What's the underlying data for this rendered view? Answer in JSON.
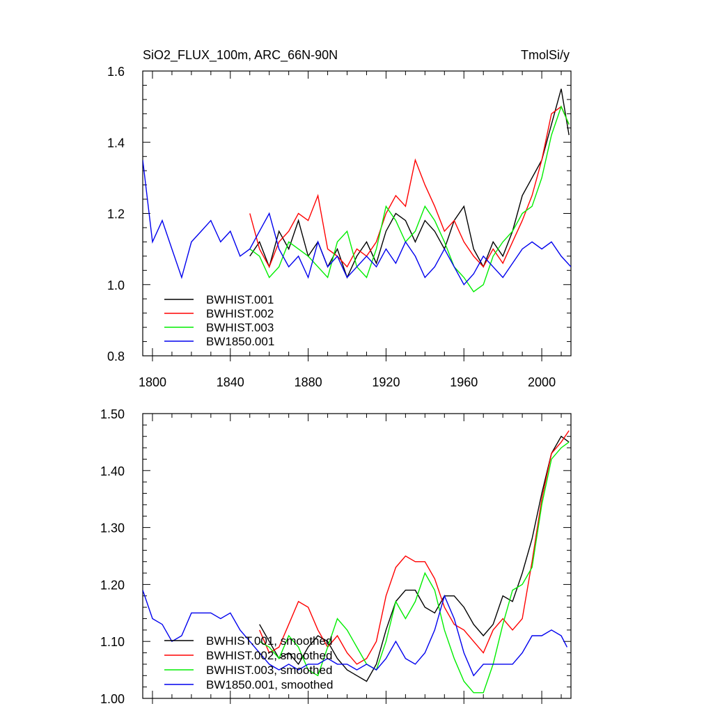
{
  "chart_data": [
    {
      "type": "line",
      "title_left": "SiO2_FLUX_100m, ARC_66N-90N",
      "title_right": "TmolSi/y",
      "xlim": [
        1795,
        2015
      ],
      "ylim": [
        0.8,
        1.6
      ],
      "xticks": [
        1800,
        1840,
        1880,
        1920,
        1960,
        2000
      ],
      "yticks": [
        0.8,
        1.0,
        1.2,
        1.4,
        1.6
      ],
      "yticks_labels": [
        "0.8",
        "1.0",
        "1.2",
        "1.4",
        "1.6"
      ],
      "legend_placement": "lower-left",
      "series": [
        {
          "name": "BWHIST.001",
          "color": "#000000",
          "x": [
            1850,
            1855,
            1860,
            1865,
            1870,
            1875,
            1880,
            1885,
            1890,
            1895,
            1900,
            1905,
            1910,
            1915,
            1920,
            1925,
            1930,
            1935,
            1940,
            1945,
            1950,
            1955,
            1960,
            1965,
            1970,
            1975,
            1980,
            1985,
            1990,
            1995,
            2000,
            2005,
            2010,
            2014
          ],
          "y": [
            1.08,
            1.12,
            1.05,
            1.15,
            1.1,
            1.18,
            1.08,
            1.12,
            1.05,
            1.1,
            1.02,
            1.08,
            1.12,
            1.06,
            1.15,
            1.2,
            1.18,
            1.12,
            1.18,
            1.15,
            1.1,
            1.18,
            1.22,
            1.1,
            1.05,
            1.12,
            1.08,
            1.15,
            1.25,
            1.3,
            1.35,
            1.45,
            1.55,
            1.42
          ]
        },
        {
          "name": "BWHIST.002",
          "color": "#ff0000",
          "x": [
            1850,
            1855,
            1860,
            1865,
            1870,
            1875,
            1880,
            1885,
            1890,
            1895,
            1900,
            1905,
            1910,
            1915,
            1920,
            1925,
            1930,
            1935,
            1940,
            1945,
            1950,
            1955,
            1960,
            1965,
            1970,
            1975,
            1980,
            1985,
            1990,
            1995,
            2000,
            2005,
            2010,
            2014
          ],
          "y": [
            1.2,
            1.1,
            1.05,
            1.12,
            1.15,
            1.2,
            1.18,
            1.25,
            1.1,
            1.08,
            1.05,
            1.1,
            1.08,
            1.12,
            1.2,
            1.25,
            1.22,
            1.35,
            1.28,
            1.22,
            1.15,
            1.18,
            1.12,
            1.08,
            1.05,
            1.1,
            1.06,
            1.12,
            1.18,
            1.25,
            1.35,
            1.48,
            1.5,
            1.45
          ]
        },
        {
          "name": "BWHIST.003",
          "color": "#00ee00",
          "x": [
            1850,
            1855,
            1860,
            1865,
            1870,
            1875,
            1880,
            1885,
            1890,
            1895,
            1900,
            1905,
            1910,
            1915,
            1920,
            1925,
            1930,
            1935,
            1940,
            1945,
            1950,
            1955,
            1960,
            1965,
            1970,
            1975,
            1980,
            1985,
            1990,
            1995,
            2000,
            2005,
            2010,
            2014
          ],
          "y": [
            1.1,
            1.08,
            1.02,
            1.05,
            1.12,
            1.1,
            1.08,
            1.05,
            1.02,
            1.12,
            1.15,
            1.05,
            1.02,
            1.1,
            1.22,
            1.18,
            1.12,
            1.15,
            1.22,
            1.18,
            1.12,
            1.05,
            1.02,
            0.98,
            1.0,
            1.08,
            1.12,
            1.15,
            1.2,
            1.22,
            1.3,
            1.42,
            1.5,
            1.45
          ]
        },
        {
          "name": "BW1850.001",
          "color": "#0000ee",
          "x": [
            1795,
            1800,
            1805,
            1810,
            1815,
            1820,
            1825,
            1830,
            1835,
            1840,
            1845,
            1850,
            1855,
            1860,
            1865,
            1870,
            1875,
            1880,
            1885,
            1890,
            1895,
            1900,
            1905,
            1910,
            1915,
            1920,
            1925,
            1930,
            1935,
            1940,
            1945,
            1950,
            1955,
            1960,
            1965,
            1970,
            1975,
            1980,
            1985,
            1990,
            1995,
            2000,
            2005,
            2010,
            2015
          ],
          "y": [
            1.35,
            1.12,
            1.18,
            1.1,
            1.02,
            1.12,
            1.15,
            1.18,
            1.12,
            1.15,
            1.08,
            1.1,
            1.15,
            1.2,
            1.1,
            1.05,
            1.08,
            1.02,
            1.12,
            1.05,
            1.08,
            1.02,
            1.05,
            1.08,
            1.05,
            1.1,
            1.06,
            1.12,
            1.08,
            1.02,
            1.05,
            1.1,
            1.05,
            1.0,
            1.03,
            1.08,
            1.05,
            1.02,
            1.06,
            1.1,
            1.12,
            1.1,
            1.12,
            1.08,
            1.05
          ]
        }
      ]
    },
    {
      "type": "line",
      "xlim": [
        1795,
        2015
      ],
      "ylim": [
        1.0,
        1.5
      ],
      "xticks": [
        1800,
        1840,
        1880,
        1920,
        1960,
        2000
      ],
      "yticks": [
        1.0,
        1.1,
        1.2,
        1.3,
        1.4,
        1.5
      ],
      "yticks_labels": [
        "1.00",
        "1.10",
        "1.20",
        "1.30",
        "1.40",
        "1.50"
      ],
      "legend_placement": "lower-left",
      "series": [
        {
          "name": "BWHIST.001, smoothed",
          "color": "#000000",
          "x": [
            1855,
            1860,
            1865,
            1870,
            1875,
            1880,
            1885,
            1890,
            1895,
            1900,
            1905,
            1910,
            1915,
            1920,
            1925,
            1930,
            1935,
            1940,
            1945,
            1950,
            1955,
            1960,
            1965,
            1970,
            1975,
            1980,
            1985,
            1990,
            1995,
            2000,
            2005,
            2010,
            2014
          ],
          "y": [
            1.13,
            1.1,
            1.07,
            1.08,
            1.06,
            1.09,
            1.11,
            1.1,
            1.07,
            1.05,
            1.04,
            1.03,
            1.06,
            1.12,
            1.17,
            1.19,
            1.19,
            1.16,
            1.15,
            1.18,
            1.18,
            1.16,
            1.13,
            1.11,
            1.13,
            1.18,
            1.17,
            1.22,
            1.28,
            1.36,
            1.43,
            1.46,
            1.45
          ]
        },
        {
          "name": "BWHIST.002, smoothed",
          "color": "#ff0000",
          "x": [
            1855,
            1860,
            1865,
            1870,
            1875,
            1880,
            1885,
            1890,
            1895,
            1900,
            1905,
            1910,
            1915,
            1920,
            1925,
            1930,
            1935,
            1940,
            1945,
            1950,
            1955,
            1960,
            1965,
            1970,
            1975,
            1980,
            1985,
            1990,
            1995,
            2000,
            2005,
            2010,
            2014
          ],
          "y": [
            1.12,
            1.08,
            1.09,
            1.13,
            1.17,
            1.16,
            1.12,
            1.09,
            1.11,
            1.08,
            1.06,
            1.07,
            1.1,
            1.18,
            1.23,
            1.25,
            1.24,
            1.24,
            1.21,
            1.16,
            1.13,
            1.12,
            1.1,
            1.08,
            1.12,
            1.14,
            1.12,
            1.14,
            1.24,
            1.35,
            1.43,
            1.45,
            1.47
          ]
        },
        {
          "name": "BWHIST.003, smoothed",
          "color": "#00ee00",
          "x": [
            1855,
            1860,
            1865,
            1870,
            1875,
            1880,
            1885,
            1890,
            1895,
            1900,
            1905,
            1910,
            1915,
            1920,
            1925,
            1930,
            1935,
            1940,
            1945,
            1950,
            1955,
            1960,
            1965,
            1970,
            1975,
            1980,
            1985,
            1990,
            1995,
            2000,
            2005,
            2010,
            2014
          ],
          "y": [
            1.1,
            1.09,
            1.07,
            1.11,
            1.09,
            1.05,
            1.04,
            1.09,
            1.14,
            1.12,
            1.09,
            1.06,
            1.05,
            1.1,
            1.17,
            1.14,
            1.17,
            1.22,
            1.19,
            1.12,
            1.07,
            1.03,
            1.01,
            1.01,
            1.06,
            1.13,
            1.19,
            1.2,
            1.23,
            1.34,
            1.42,
            1.44,
            1.45
          ]
        },
        {
          "name": "BW1850.001, smoothed",
          "color": "#0000ee",
          "x": [
            1795,
            1800,
            1805,
            1810,
            1815,
            1820,
            1825,
            1830,
            1835,
            1840,
            1845,
            1850,
            1855,
            1860,
            1865,
            1870,
            1875,
            1880,
            1885,
            1890,
            1895,
            1900,
            1905,
            1910,
            1915,
            1920,
            1925,
            1930,
            1935,
            1940,
            1945,
            1950,
            1955,
            1960,
            1965,
            1970,
            1975,
            1980,
            1985,
            1990,
            1995,
            2000,
            2005,
            2010,
            2013
          ],
          "y": [
            1.19,
            1.14,
            1.13,
            1.1,
            1.11,
            1.15,
            1.15,
            1.15,
            1.14,
            1.15,
            1.12,
            1.1,
            1.08,
            1.06,
            1.05,
            1.06,
            1.05,
            1.06,
            1.06,
            1.07,
            1.06,
            1.06,
            1.05,
            1.06,
            1.05,
            1.07,
            1.1,
            1.07,
            1.06,
            1.08,
            1.12,
            1.18,
            1.14,
            1.08,
            1.04,
            1.06,
            1.06,
            1.06,
            1.06,
            1.08,
            1.11,
            1.11,
            1.12,
            1.11,
            1.09
          ]
        }
      ]
    }
  ]
}
